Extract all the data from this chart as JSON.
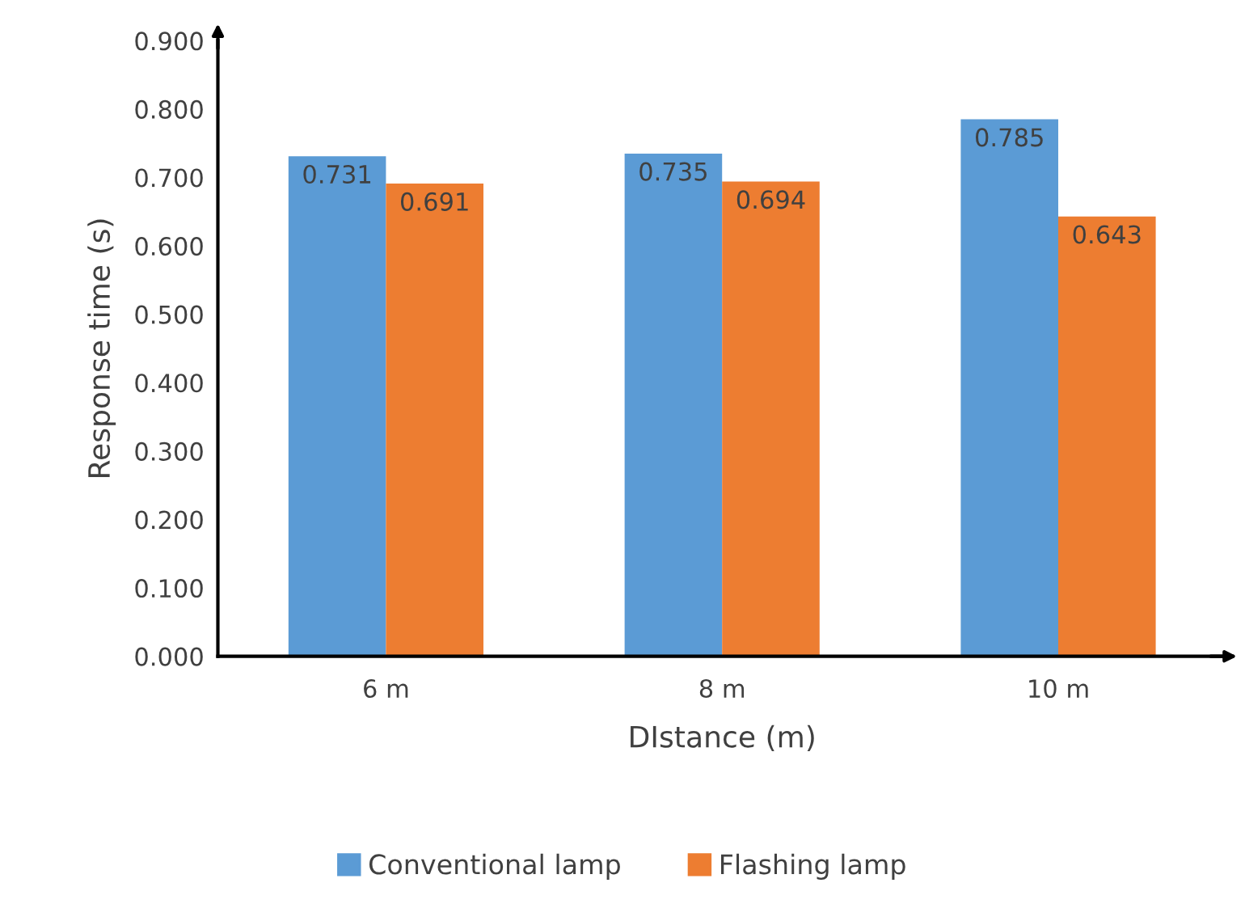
{
  "chart_data": {
    "type": "bar",
    "xlabel": "DIstance (m)",
    "ylabel": "Response time (s)",
    "categories": [
      "6 m",
      "8 m",
      "10 m"
    ],
    "series": [
      {
        "name": "Conventional lamp",
        "color": "#5b9bd5",
        "values": [
          0.731,
          0.735,
          0.785
        ]
      },
      {
        "name": "Flashing lamp",
        "color": "#ed7d31",
        "values": [
          0.691,
          0.694,
          0.643
        ]
      }
    ],
    "ylim": [
      0,
      0.9
    ],
    "yticks": [
      {
        "value": 0,
        "label": "0.000"
      },
      {
        "value": 0.1,
        "label": "0.100"
      },
      {
        "value": 0.2,
        "label": "0.200"
      },
      {
        "value": 0.3,
        "label": "0.300"
      },
      {
        "value": 0.4,
        "label": "0.400"
      },
      {
        "value": 0.5,
        "label": "0.500"
      },
      {
        "value": 0.6,
        "label": "0.600"
      },
      {
        "value": 0.7,
        "label": "0.700"
      },
      {
        "value": 0.8,
        "label": "0.800"
      },
      {
        "value": 0.9,
        "label": "0.900"
      }
    ],
    "data_labels": true,
    "grid": false,
    "legend": "bottom"
  }
}
